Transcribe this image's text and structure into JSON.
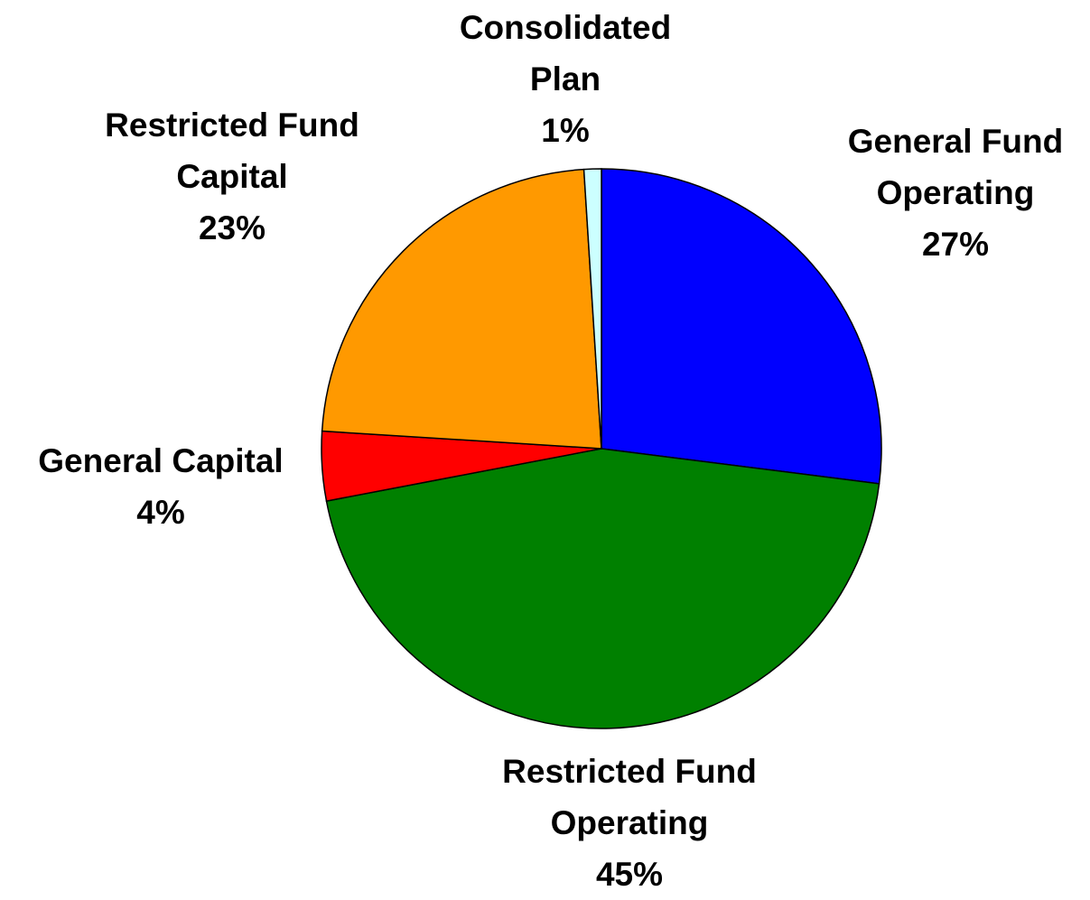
{
  "chart_data": {
    "type": "pie",
    "categories": [
      "General Fund Operating",
      "Restricted Fund Operating",
      "General Capital",
      "Restricted Fund Capital",
      "Consolidated Plan"
    ],
    "values": [
      27,
      45,
      4,
      23,
      1
    ],
    "value_labels": [
      "27%",
      "45%",
      "4%",
      "23%",
      "1%"
    ],
    "colors": [
      "#0000ff",
      "#008000",
      "#ff0000",
      "#ff9900",
      "#ccffff"
    ]
  }
}
